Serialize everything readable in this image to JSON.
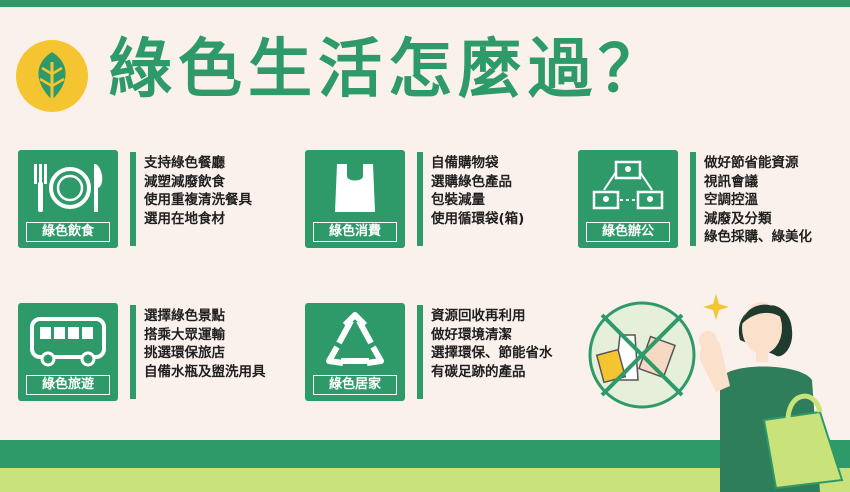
{
  "header": {
    "title": "綠色生活怎麼過？"
  },
  "colors": {
    "primary_green": "#2e9a6a",
    "background": "#fbf1ec",
    "logo_yellow": "#f5c531",
    "accent_lime": "#c9e27a"
  },
  "cards": [
    {
      "label": "綠色飲食",
      "icon": "plate-fork-knife-icon",
      "items": [
        "支持綠色餐廳",
        "減塑減廢飲食",
        "使用重複清洗餐具",
        "選用在地食材"
      ]
    },
    {
      "label": "綠色消費",
      "icon": "shopping-bag-icon",
      "items": [
        "自備購物袋",
        "選購綠色產品",
        "包裝減量",
        "使用循環袋(箱)"
      ]
    },
    {
      "label": "綠色辦公",
      "icon": "video-conference-icon",
      "items": [
        "做好節省能資源",
        "視訊會議",
        "空調控溫",
        "減廢及分類",
        "綠色採購、綠美化"
      ]
    },
    {
      "label": "綠色旅遊",
      "icon": "bus-icon",
      "items": [
        "選擇綠色景點",
        "搭乘大眾運輸",
        "挑選環保旅店",
        "自備水瓶及盥洗用具"
      ]
    },
    {
      "label": "綠色居家",
      "icon": "recycle-icon",
      "items": [
        "資源回收再利用",
        "做好環境清潔",
        "選擇環保、節能省水",
        "有碳足跡的產品"
      ]
    }
  ]
}
